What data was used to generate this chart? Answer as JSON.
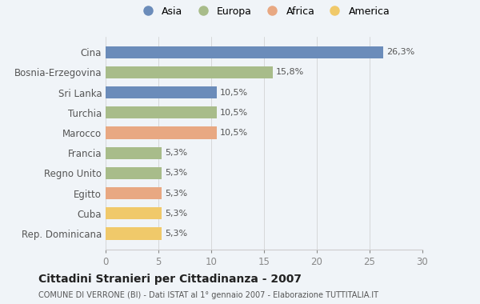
{
  "categories": [
    "Cina",
    "Bosnia-Erzegovina",
    "Sri Lanka",
    "Turchia",
    "Marocco",
    "Francia",
    "Regno Unito",
    "Egitto",
    "Cuba",
    "Rep. Dominicana"
  ],
  "values": [
    26.3,
    15.8,
    10.5,
    10.5,
    10.5,
    5.3,
    5.3,
    5.3,
    5.3,
    5.3
  ],
  "labels": [
    "26,3%",
    "15,8%",
    "10,5%",
    "10,5%",
    "10,5%",
    "5,3%",
    "5,3%",
    "5,3%",
    "5,3%",
    "5,3%"
  ],
  "colors": [
    "#6b8cba",
    "#a8bc8a",
    "#6b8cba",
    "#a8bc8a",
    "#e8a882",
    "#a8bc8a",
    "#a8bc8a",
    "#e8a882",
    "#f0c96a",
    "#f0c96a"
  ],
  "legend": [
    {
      "label": "Asia",
      "color": "#6b8cba"
    },
    {
      "label": "Europa",
      "color": "#a8bc8a"
    },
    {
      "label": "Africa",
      "color": "#e8a882"
    },
    {
      "label": "America",
      "color": "#f0c96a"
    }
  ],
  "xlim": [
    0,
    30
  ],
  "xticks": [
    0,
    5,
    10,
    15,
    20,
    25,
    30
  ],
  "title": "Cittadini Stranieri per Cittadinanza - 2007",
  "subtitle": "COMUNE DI VERRONE (BI) - Dati ISTAT al 1° gennaio 2007 - Elaborazione TUTTITALIA.IT",
  "background_color": "#f0f4f8"
}
